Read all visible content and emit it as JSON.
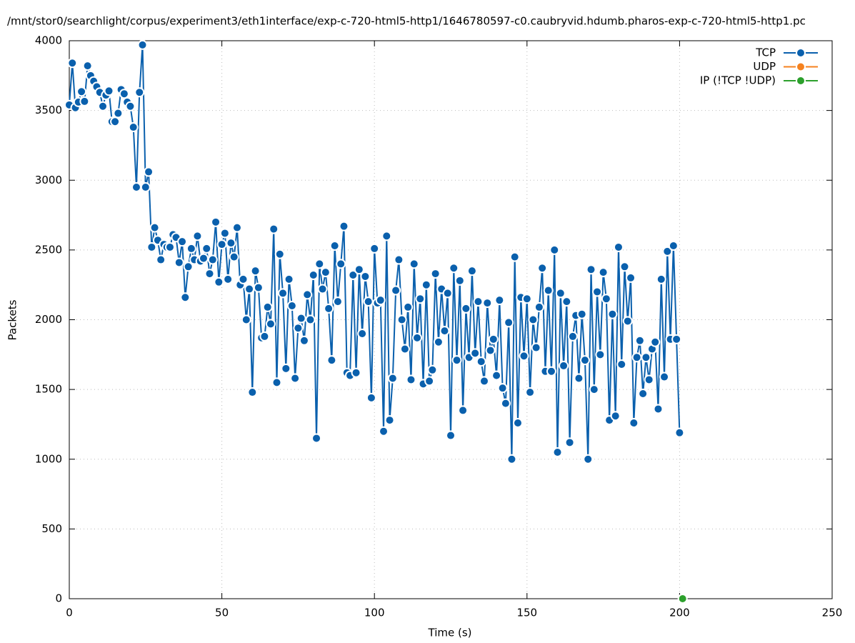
{
  "chart_data": {
    "type": "line",
    "title": "/mnt/stor0/searchlight/corpus/experiment3/eth1interface/exp-c-720-html5-http1/1646780597-c0.caubryvid.hdumb.pharos-exp-c-720-html5-http1.pc",
    "x_label": "Time (s)",
    "y_label": "Packets",
    "xlim": [
      0,
      250
    ],
    "xticks": [
      0,
      50,
      100,
      150,
      200,
      250
    ],
    "ylim": [
      0,
      4000
    ],
    "yticks": [
      0,
      500,
      1000,
      1500,
      2000,
      2500,
      3000,
      3500,
      4000
    ],
    "grid": true,
    "legend": "top-right",
    "series": [
      {
        "name": "TCP",
        "color": "#0a60ad",
        "x": [
          0,
          1,
          2,
          3,
          4,
          5,
          6,
          7,
          8,
          9,
          10,
          11,
          12,
          13,
          14,
          15,
          16,
          17,
          18,
          19,
          20,
          21,
          22,
          23,
          24,
          25,
          26,
          27,
          28,
          29,
          30,
          31,
          32,
          33,
          34,
          35,
          36,
          37,
          38,
          39,
          40,
          41,
          42,
          43,
          44,
          45,
          46,
          47,
          48,
          49,
          50,
          51,
          52,
          53,
          54,
          55,
          56,
          57,
          58,
          59,
          60,
          61,
          62,
          63,
          64,
          65,
          66,
          67,
          68,
          69,
          70,
          71,
          72,
          73,
          74,
          75,
          76,
          77,
          78,
          79,
          80,
          81,
          82,
          83,
          84,
          85,
          86,
          87,
          88,
          89,
          90,
          91,
          92,
          93,
          94,
          95,
          96,
          97,
          98,
          99,
          100,
          101,
          102,
          103,
          104,
          105,
          106,
          107,
          108,
          109,
          110,
          111,
          112,
          113,
          114,
          115,
          116,
          117,
          118,
          119,
          120,
          121,
          122,
          123,
          124,
          125,
          126,
          127,
          128,
          129,
          130,
          131,
          132,
          133,
          134,
          135,
          136,
          137,
          138,
          139,
          140,
          141,
          142,
          143,
          144,
          145,
          146,
          147,
          148,
          149,
          150,
          151,
          152,
          153,
          154,
          155,
          156,
          157,
          158,
          159,
          160,
          161,
          162,
          163,
          164,
          165,
          166,
          167,
          168,
          169,
          170,
          171,
          172,
          173,
          174,
          175,
          176,
          177,
          178,
          179,
          180,
          181,
          182,
          183,
          184,
          185,
          186,
          187,
          188,
          189,
          190,
          191,
          192,
          193,
          194,
          195,
          196,
          197,
          198,
          199,
          200
        ],
        "values": [
          3540,
          3840,
          3520,
          3560,
          3635,
          3565,
          3820,
          3750,
          3710,
          3670,
          3630,
          3530,
          3610,
          3640,
          3420,
          3420,
          3480,
          3650,
          3620,
          3560,
          3530,
          3380,
          2950,
          3630,
          3970,
          2950,
          3060,
          2520,
          2660,
          2570,
          2430,
          2540,
          2520,
          2520,
          2610,
          2590,
          2410,
          2560,
          2160,
          2380,
          2510,
          2430,
          2600,
          2420,
          2440,
          2510,
          2330,
          2430,
          2700,
          2270,
          2540,
          2620,
          2290,
          2550,
          2450,
          2660,
          2250,
          2290,
          2000,
          2220,
          1480,
          2350,
          2230,
          1870,
          1880,
          2090,
          1970,
          2650,
          1550,
          2470,
          2190,
          1650,
          2290,
          2100,
          1580,
          1940,
          2010,
          1850,
          2180,
          2000,
          2320,
          1150,
          2400,
          2220,
          2340,
          2080,
          1710,
          2530,
          2130,
          2400,
          2670,
          1620,
          1600,
          2320,
          1620,
          2360,
          1900,
          2310,
          2130,
          1440,
          2510,
          2120,
          2140,
          1200,
          2600,
          1280,
          1580,
          2210,
          2430,
          2000,
          1790,
          2090,
          1570,
          2400,
          1870,
          2150,
          1540,
          2250,
          1560,
          1640,
          2330,
          1840,
          2220,
          1920,
          2190,
          1170,
          2370,
          1710,
          2280,
          1350,
          2080,
          1730,
          2350,
          1760,
          2130,
          1700,
          1560,
          2120,
          1780,
          1860,
          1600,
          2140,
          1510,
          1400,
          1980,
          1000,
          2450,
          1260,
          2160,
          1740,
          2150,
          1480,
          2000,
          1800,
          2090,
          2370,
          1630,
          2210,
          1630,
          2500,
          1050,
          2190,
          1670,
          2130,
          1120,
          1880,
          2030,
          1580,
          2040,
          1710,
          1000,
          2360,
          1500,
          2200,
          1750,
          2340,
          2150,
          1280,
          2040,
          1310,
          2520,
          1680,
          2380,
          1990,
          2300,
          1260,
          1730,
          1850,
          1470,
          1730,
          1570,
          1790,
          1840,
          1360,
          2290,
          1590,
          2490,
          1860,
          2530,
          1860,
          1190
        ]
      },
      {
        "name": "UDP",
        "color": "#f5821f",
        "x": [],
        "values": []
      },
      {
        "name": "IP (!TCP  !UDP)",
        "color": "#2ca02c",
        "x": [
          201
        ],
        "values": [
          0
        ]
      }
    ]
  }
}
